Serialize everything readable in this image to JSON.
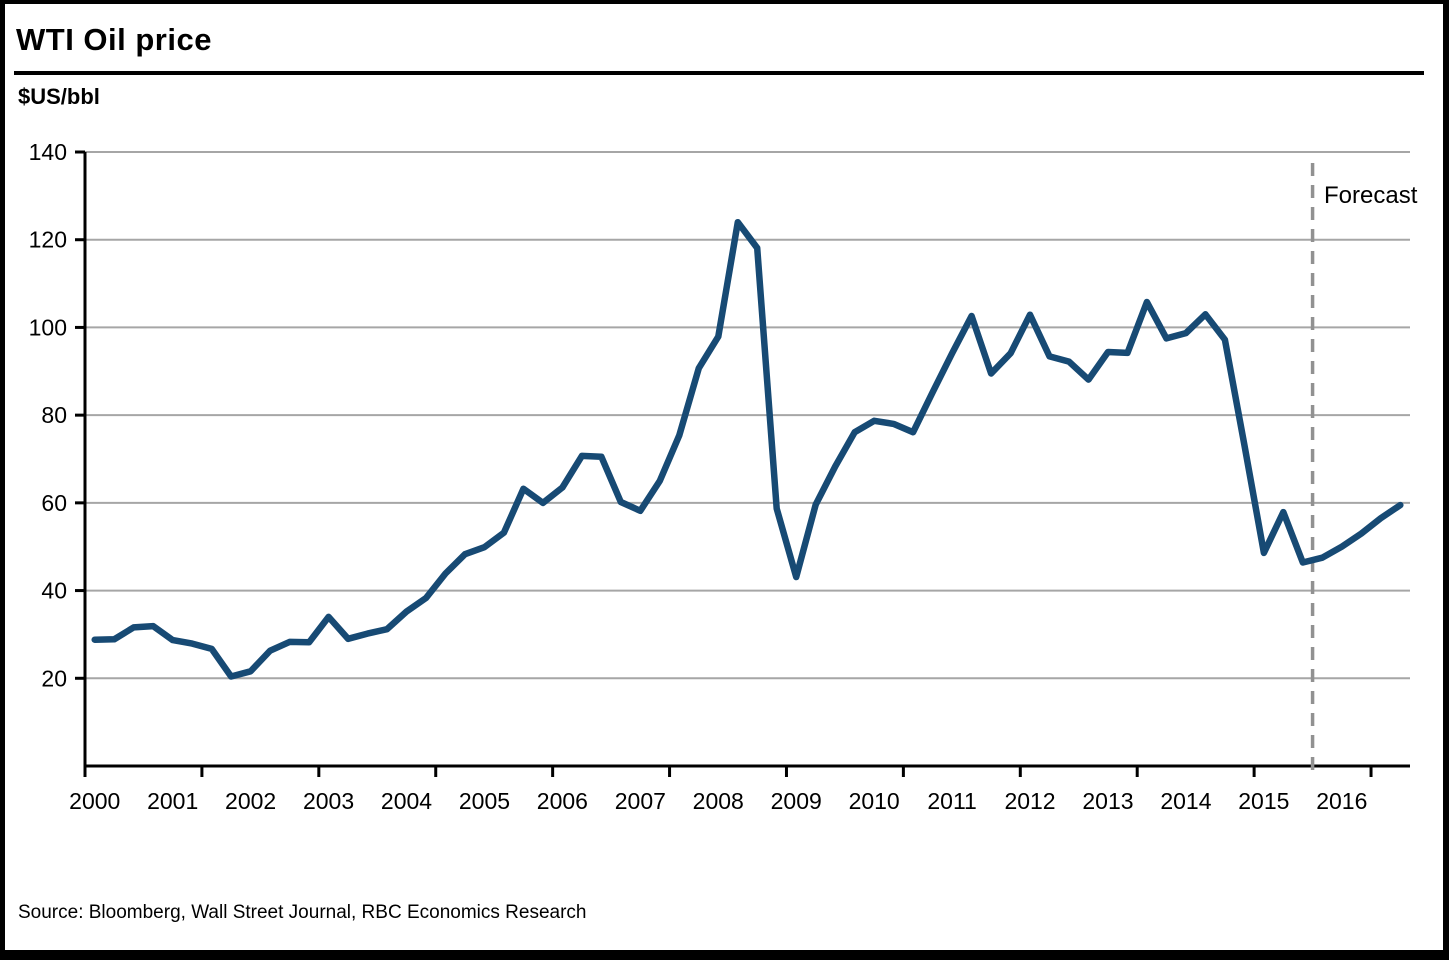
{
  "header": {
    "title": "WTI Oil price",
    "units_label": "$US/bbl"
  },
  "forecast_label": "Forecast",
  "footer": {
    "source": "Source: Bloomberg, Wall Street Journal, RBC Economics Research"
  },
  "colors": {
    "line": "#174a74",
    "grid": "#a6a6a6",
    "axis": "#000000",
    "forecast_divider": "#919191",
    "text": "#000000"
  },
  "chart_data": {
    "type": "line",
    "title": "WTI Oil price",
    "ylabel": "$US/bbl",
    "xlabel": "",
    "ylim": [
      0,
      140
    ],
    "yticks": [
      20,
      40,
      60,
      80,
      100,
      120,
      140
    ],
    "grid": "horizontal",
    "legend_position": "none",
    "frequency": "quarterly",
    "x_year_labels": [
      "2000",
      "2001",
      "2002",
      "2003",
      "2004",
      "2005",
      "2006",
      "2007",
      "2008",
      "2009",
      "2010",
      "2011",
      "2012",
      "2013",
      "2014",
      "2015",
      "2016"
    ],
    "points_per_year": 4,
    "xtick_every_points": 6,
    "forecast_start_index": 63,
    "forecast_annotation": "Forecast",
    "series": [
      {
        "name": "WTI oil price ($US/bbl, quarterly average)",
        "values": [
          28.8,
          28.9,
          31.6,
          31.9,
          28.7,
          27.9,
          26.7,
          20.4,
          21.6,
          26.3,
          28.3,
          28.2,
          34.0,
          29.0,
          30.2,
          31.2,
          35.2,
          38.3,
          43.9,
          48.3,
          49.9,
          53.2,
          63.2,
          60.0,
          63.5,
          70.7,
          70.5,
          60.2,
          58.2,
          65.0,
          75.4,
          90.7,
          97.9,
          124.0,
          118.1,
          58.7,
          43.1,
          59.6,
          68.3,
          76.1,
          78.7,
          78.0,
          76.1,
          85.2,
          94.1,
          102.6,
          89.5,
          94.1,
          102.9,
          93.4,
          92.2,
          88.1,
          94.4,
          94.2,
          105.8,
          97.5,
          98.7,
          103.0,
          97.2,
          73.2,
          48.6,
          57.9,
          46.4,
          47.5,
          50.0,
          53.0,
          56.5,
          59.5
        ]
      }
    ]
  }
}
